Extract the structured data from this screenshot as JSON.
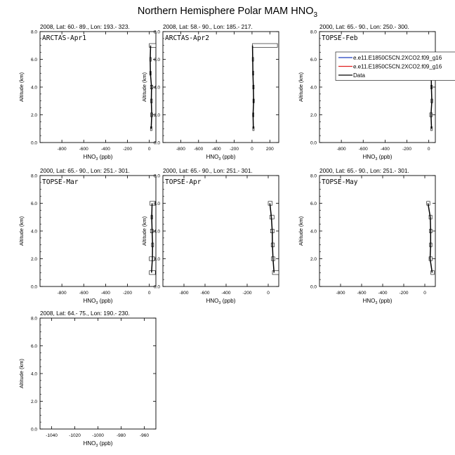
{
  "title": {
    "main": "Northern Hemisphere Polar MAM HNO",
    "sub": "3"
  },
  "chart_data": {
    "type": "line",
    "ylabel": "Altitude (km)",
    "xlabel_main": "HNO",
    "xlabel_sub": "3",
    "xlabel_unit": " (ppb)",
    "ylim": [
      0,
      8
    ],
    "yticks": [
      "0.0",
      "2.0",
      "4.0",
      "6.0",
      "8.0"
    ],
    "legend": {
      "position": "top-right of TOPSE-Feb panel",
      "entries": [
        {
          "label": "e.e11.E1850C5CN.2XCO2.f09_g16",
          "color": "#1f3fbf"
        },
        {
          "label": "e.e11.E1850C5CN.2XCO2.f09_g16",
          "color": "#e02020"
        },
        {
          "label": "Data",
          "color": "#000000"
        }
      ]
    },
    "panels": [
      {
        "header": "2008, Lat:  60.- 89., Lon: 193.- 323.",
        "campaign": "ARCTAS-Apr1",
        "xlim": [
          -1000,
          60
        ],
        "xticks": [
          -800,
          -600,
          -400,
          -200,
          0
        ],
        "data_line": [
          [
            17,
            1
          ],
          [
            22,
            2
          ],
          [
            18,
            3
          ],
          [
            20,
            4
          ],
          [
            10,
            5
          ],
          [
            8,
            6
          ],
          [
            12,
            7
          ]
        ],
        "boxes": [
          [
            10,
            25,
            1
          ],
          [
            12,
            30,
            2
          ],
          [
            12,
            28,
            3
          ],
          [
            10,
            32,
            4
          ],
          [
            4,
            16,
            5
          ],
          [
            4,
            12,
            6
          ],
          [
            0,
            60,
            7
          ]
        ]
      },
      {
        "header": "2008, Lat:  58.- 90., Lon: 185.- 217.",
        "campaign": "ARCTAS-Apr2",
        "xlim": [
          -1000,
          300
        ],
        "xticks": [
          -800,
          -600,
          -400,
          -200,
          0,
          200
        ],
        "data_line": [
          [
            15,
            1
          ],
          [
            12,
            2
          ],
          [
            18,
            3
          ],
          [
            15,
            4
          ],
          [
            10,
            5
          ],
          [
            8,
            6
          ],
          [
            5,
            7
          ]
        ],
        "boxes": [
          [
            8,
            22,
            1
          ],
          [
            6,
            18,
            2
          ],
          [
            10,
            25,
            3
          ],
          [
            8,
            22,
            4
          ],
          [
            5,
            16,
            5
          ],
          [
            2,
            14,
            6
          ],
          [
            5,
            285,
            7
          ]
        ]
      },
      {
        "header": "2000, Lat: 65.- 90., Lon: 250.- 300.",
        "campaign": "TOPSE-Feb",
        "xlim": [
          -1000,
          60
        ],
        "xticks": [
          -800,
          -600,
          -400,
          -200,
          0
        ],
        "data_line": [
          [
            25,
            1
          ],
          [
            20,
            2
          ],
          [
            28,
            3
          ],
          [
            24,
            4
          ],
          [
            22,
            5
          ],
          [
            22,
            6
          ]
        ],
        "boxes": [
          [
            18,
            32,
            1
          ],
          [
            8,
            32,
            2
          ],
          [
            20,
            36,
            3
          ],
          [
            18,
            32,
            4
          ],
          [
            16,
            28,
            5
          ],
          [
            18,
            28,
            6
          ]
        ]
      },
      {
        "header": "2000, Lat: 65.- 90., Lon: 251.- 301.",
        "campaign": "TOPSE-Mar",
        "xlim": [
          -1000,
          60
        ],
        "xticks": [
          -800,
          -600,
          -400,
          -200,
          0
        ],
        "data_line": [
          [
            20,
            1
          ],
          [
            28,
            2
          ],
          [
            30,
            3
          ],
          [
            25,
            4
          ],
          [
            22,
            5
          ],
          [
            25,
            6
          ]
        ],
        "boxes": [
          [
            0,
            55,
            1
          ],
          [
            0,
            48,
            2
          ],
          [
            20,
            40,
            3
          ],
          [
            10,
            35,
            4
          ],
          [
            15,
            30,
            5
          ],
          [
            5,
            55,
            6
          ]
        ]
      },
      {
        "header": "2000, Lat: 65.- 90., Lon: 251.- 301.",
        "campaign": "TOPSE-Apr",
        "xlim": [
          -1000,
          100
        ],
        "xticks": [
          -800,
          -600,
          -400,
          -200,
          0
        ],
        "data_line": [
          [
            55,
            1
          ],
          [
            45,
            2
          ],
          [
            40,
            3
          ],
          [
            38,
            4
          ],
          [
            30,
            5
          ],
          [
            15,
            6
          ]
        ],
        "boxes": [
          [
            40,
            100,
            1
          ],
          [
            30,
            62,
            2
          ],
          [
            28,
            58,
            3
          ],
          [
            22,
            55,
            4
          ],
          [
            15,
            55,
            5
          ],
          [
            0,
            38,
            6
          ]
        ]
      },
      {
        "header": "2000, Lat: 65.- 90., Lon: 251.- 301.",
        "campaign": "TOPSE-May",
        "xlim": [
          -1000,
          100
        ],
        "xticks": [
          -800,
          -600,
          -400,
          -200,
          0
        ],
        "data_line": [
          [
            70,
            1
          ],
          [
            50,
            2
          ],
          [
            55,
            3
          ],
          [
            55,
            4
          ],
          [
            52,
            5
          ],
          [
            30,
            6
          ]
        ],
        "boxes": [
          [
            58,
            90,
            1
          ],
          [
            40,
            70,
            2
          ],
          [
            45,
            68,
            3
          ],
          [
            45,
            68,
            4
          ],
          [
            40,
            68,
            5
          ],
          [
            18,
            48,
            6
          ]
        ]
      },
      {
        "header": "2008, Lat:  64.- 75., Lon: 190.- 230.",
        "campaign": "",
        "xlim": [
          -1050,
          -950
        ],
        "xticks": [
          -1040,
          -1020,
          -1000,
          -980,
          -960
        ],
        "data_line": [],
        "boxes": []
      }
    ]
  }
}
